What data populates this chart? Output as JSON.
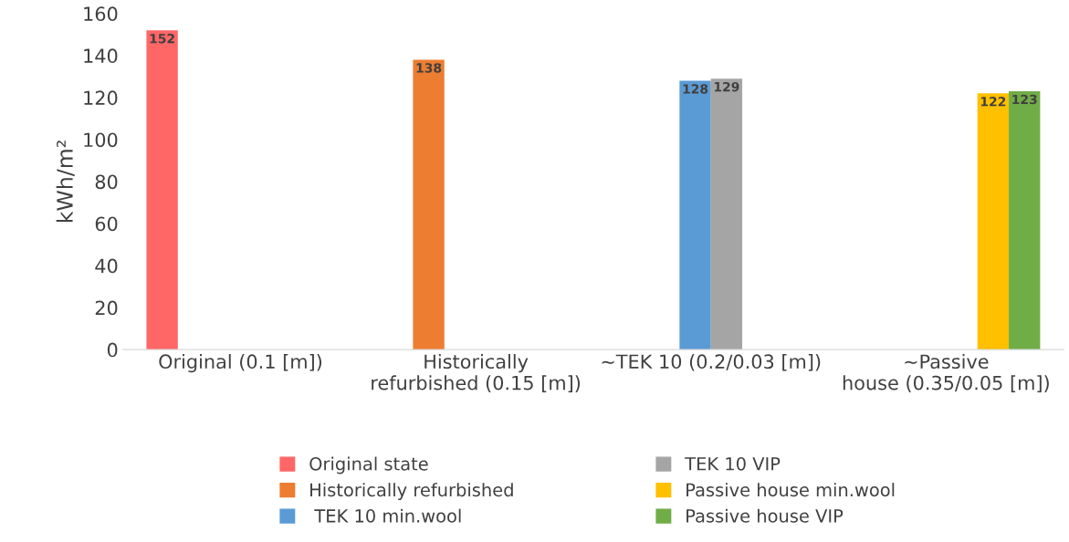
{
  "chart_data": {
    "type": "bar",
    "ylabel": "kWh/m²",
    "categories": [
      "Original (0.1 [m])",
      "Historically refurbished (0.15 [m])",
      "~TEK 10 (0.2/0.03 [m])",
      "~Passive house (0.35/0.05 [m])"
    ],
    "series": [
      {
        "name": "Original state",
        "color": "#ff6666",
        "values": [
          152,
          null,
          null,
          null
        ]
      },
      {
        "name": "Historically refurbished",
        "color": "#ed7d31",
        "values": [
          null,
          138,
          null,
          null
        ]
      },
      {
        "name": " TEK 10 min.wool",
        "color": "#5b9bd5",
        "values": [
          null,
          null,
          128,
          null
        ]
      },
      {
        "name": "TEK 10 VIP",
        "color": "#a5a5a5",
        "values": [
          null,
          null,
          129,
          null
        ]
      },
      {
        "name": "Passive house min.wool",
        "color": "#ffc000",
        "values": [
          null,
          null,
          null,
          122
        ]
      },
      {
        "name": "Passive house VIP",
        "color": "#70ad47",
        "values": [
          null,
          null,
          null,
          123
        ]
      }
    ],
    "ylim": [
      0,
      160
    ],
    "yticks": [
      0,
      20,
      40,
      60,
      80,
      100,
      120,
      140,
      160
    ],
    "grid": false,
    "legend": "bottom",
    "data_labels": true
  }
}
